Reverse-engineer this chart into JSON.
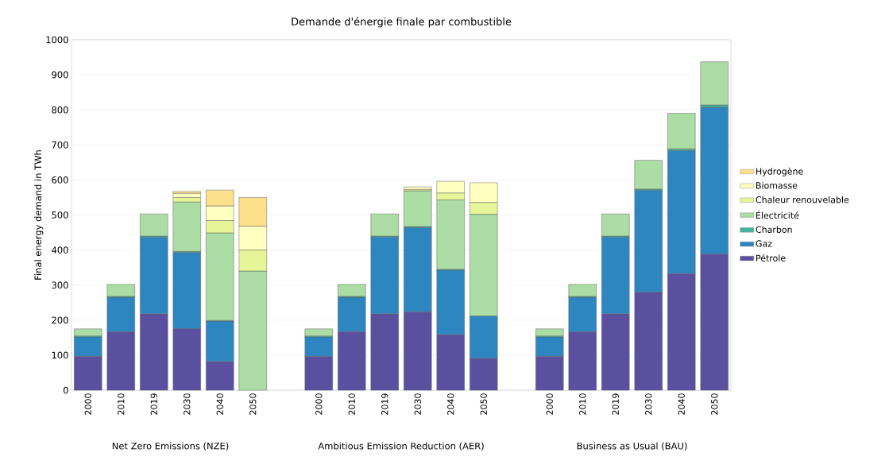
{
  "chart_data": {
    "type": "bar",
    "stacked": true,
    "title": "Demande d'énergie finale par combustible",
    "ylabel": "Final energy demand in TWh",
    "categories": [
      "2000",
      "2010",
      "2019",
      "2030",
      "2040",
      "2050",
      null,
      "2000",
      "2010",
      "2019",
      "2030",
      "2040",
      "2050",
      null,
      "2000",
      "2010",
      "2019",
      "2030",
      "2040",
      "2050"
    ],
    "series": [
      {
        "name": "Pétrole",
        "color": "#5b4fa0",
        "values": [
          97,
          167,
          218,
          176,
          82,
          null,
          null,
          97,
          167,
          218,
          224,
          159,
          91,
          null,
          97,
          167,
          218,
          280,
          333,
          389
        ]
      },
      {
        "name": "Gaz",
        "color": "#2e86c1",
        "values": [
          55,
          98,
          219,
          217,
          115,
          null,
          null,
          55,
          98,
          219,
          240,
          184,
          121,
          null,
          55,
          98,
          219,
          291,
          351,
          418
        ]
      },
      {
        "name": "Charbon",
        "color": "#45b39d",
        "values": [
          3,
          3,
          3,
          3,
          2,
          null,
          null,
          3,
          3,
          3,
          3,
          2,
          null,
          null,
          3,
          3,
          3,
          3,
          5,
          7
        ]
      },
      {
        "name": "Électricité",
        "color": "#abdda4",
        "values": [
          20,
          34,
          63,
          141,
          250,
          340,
          null,
          20,
          34,
          63,
          102,
          198,
          290,
          null,
          20,
          34,
          63,
          82,
          101,
          123
        ]
      },
      {
        "name": "Chaleur renouvelable",
        "color": "#e6f598",
        "values": [
          null,
          null,
          null,
          13,
          35,
          60,
          null,
          null,
          null,
          null,
          4,
          20,
          34,
          null,
          null,
          null,
          null,
          null,
          null,
          null
        ]
      },
      {
        "name": "Biomasse",
        "color": "#ffffbf",
        "values": [
          null,
          null,
          null,
          12,
          42,
          68,
          null,
          null,
          null,
          null,
          7,
          33,
          56,
          null,
          null,
          null,
          null,
          null,
          null,
          null
        ]
      },
      {
        "name": "Hydrogène",
        "color": "#fee08b",
        "values": [
          null,
          null,
          null,
          5,
          45,
          82,
          null,
          null,
          null,
          null,
          null,
          null,
          null,
          null,
          null,
          null,
          null,
          null,
          null,
          null
        ]
      }
    ],
    "ylim": [
      0,
      1000
    ],
    "yticks": [
      0,
      100,
      200,
      300,
      400,
      500,
      600,
      700,
      800,
      900,
      1000
    ],
    "grid": "y",
    "legend": "right",
    "annotations": [
      "Net Zero Emissions (NZE)",
      "Ambitious Emission Reduction (AER)",
      "Business as Usual (BAU)"
    ]
  }
}
